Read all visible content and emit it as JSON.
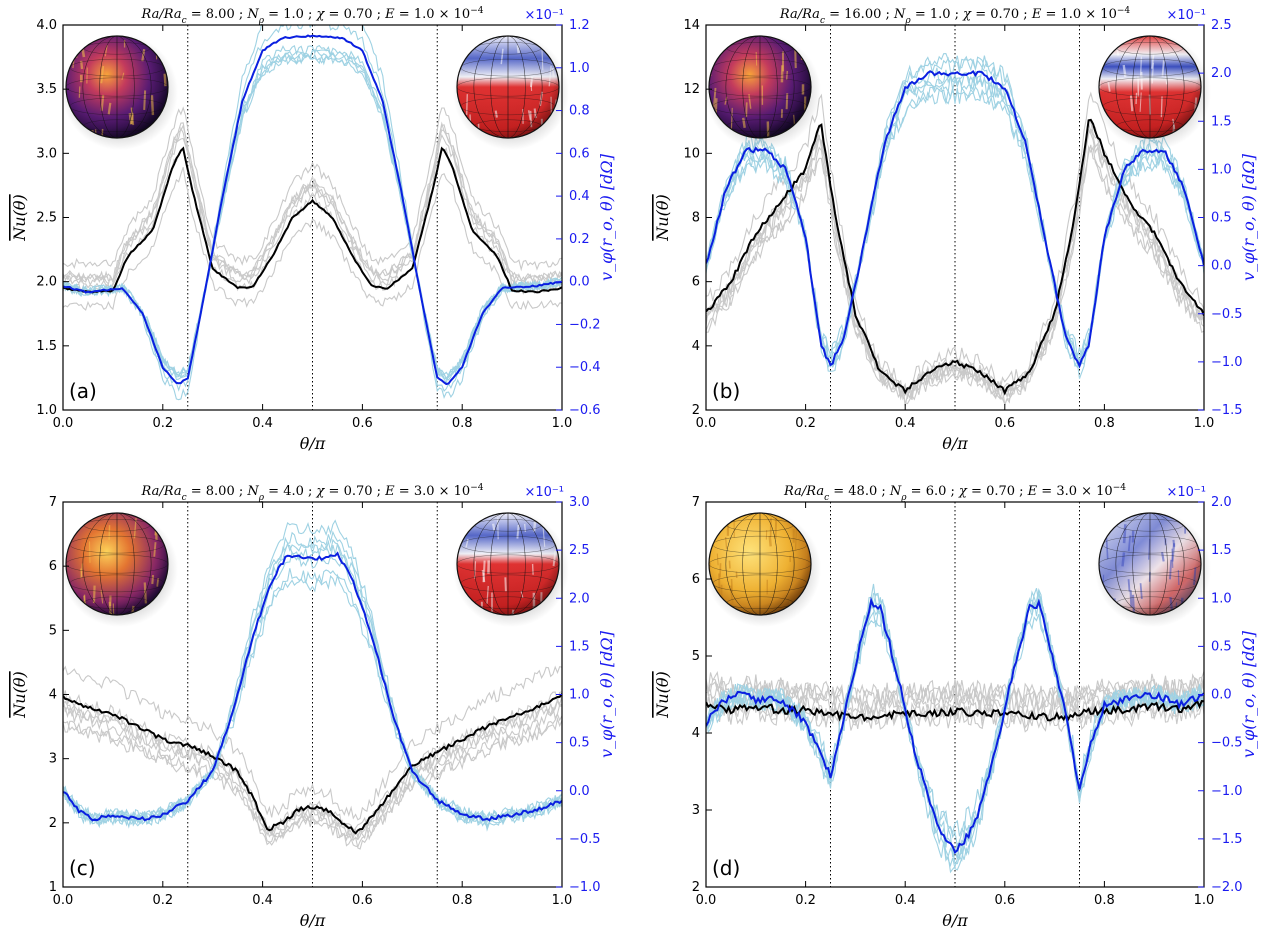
{
  "chart_data": [
    {
      "type": "line",
      "panel_label": "(a)",
      "title": "Ra/Ra_c = 8.00 ; N_ϱ = 1.0 ; χ = 0.70 ; E = 1.0 × 10^-4",
      "title_parts": {
        "ra": "8.00",
        "nrho": "1.0",
        "chi": "0.70",
        "ek": "1.0"
      },
      "xlabel": "θ/π",
      "ylabel_left": "Nu(θ)",
      "ylabel_right": "v_φ(r_o, θ)   [dΩ]",
      "right_multiplier": "×10⁻¹",
      "xlim": [
        0,
        1
      ],
      "ylim_left": [
        1.0,
        4.0
      ],
      "ylim_right": [
        -0.6,
        1.2
      ],
      "x_ticks": [
        0.0,
        0.2,
        0.4,
        0.6,
        0.8,
        1.0
      ],
      "y_ticks_left": [
        1.0,
        1.5,
        2.0,
        2.5,
        3.0,
        3.5,
        4.0
      ],
      "y_ticks_right": [
        -0.6,
        -0.4,
        -0.2,
        0.0,
        0.2,
        0.4,
        0.6,
        0.8,
        1.0,
        1.2
      ],
      "vlines_x": [
        0.25,
        0.5,
        0.75
      ],
      "series": [
        {
          "axis": "left",
          "color": "#000000",
          "points": [
            [
              0.0,
              1.95
            ],
            [
              0.05,
              1.92
            ],
            [
              0.1,
              1.93
            ],
            [
              0.13,
              2.2
            ],
            [
              0.18,
              2.4
            ],
            [
              0.22,
              2.9
            ],
            [
              0.24,
              3.05
            ],
            [
              0.26,
              2.7
            ],
            [
              0.3,
              2.1
            ],
            [
              0.35,
              1.95
            ],
            [
              0.38,
              1.96
            ],
            [
              0.42,
              2.2
            ],
            [
              0.46,
              2.5
            ],
            [
              0.5,
              2.63
            ],
            [
              0.54,
              2.5
            ],
            [
              0.58,
              2.2
            ],
            [
              0.62,
              1.96
            ],
            [
              0.65,
              1.95
            ],
            [
              0.7,
              2.1
            ],
            [
              0.74,
              2.7
            ],
            [
              0.76,
              3.05
            ],
            [
              0.78,
              2.9
            ],
            [
              0.82,
              2.4
            ],
            [
              0.87,
              2.2
            ],
            [
              0.9,
              1.93
            ],
            [
              0.95,
              1.92
            ],
            [
              1.0,
              1.95
            ]
          ]
        },
        {
          "axis": "right",
          "color": "#0a1fe0",
          "points": [
            [
              0.0,
              -0.02
            ],
            [
              0.05,
              -0.05
            ],
            [
              0.12,
              -0.03
            ],
            [
              0.16,
              -0.15
            ],
            [
              0.2,
              -0.4
            ],
            [
              0.23,
              -0.48
            ],
            [
              0.25,
              -0.45
            ],
            [
              0.28,
              -0.1
            ],
            [
              0.32,
              0.4
            ],
            [
              0.36,
              0.85
            ],
            [
              0.4,
              1.08
            ],
            [
              0.44,
              1.14
            ],
            [
              0.5,
              1.15
            ],
            [
              0.56,
              1.14
            ],
            [
              0.6,
              1.08
            ],
            [
              0.64,
              0.85
            ],
            [
              0.68,
              0.4
            ],
            [
              0.72,
              -0.1
            ],
            [
              0.75,
              -0.45
            ],
            [
              0.77,
              -0.48
            ],
            [
              0.8,
              -0.4
            ],
            [
              0.84,
              -0.15
            ],
            [
              0.88,
              -0.03
            ],
            [
              0.95,
              -0.02
            ],
            [
              1.0,
              0.0
            ]
          ]
        }
      ]
    },
    {
      "type": "line",
      "panel_label": "(b)",
      "title": "Ra/Ra_c = 16.00 ; N_ϱ = 1.0 ; χ = 0.70 ; E = 1.0 × 10^-4",
      "title_parts": {
        "ra": "16.00",
        "nrho": "1.0",
        "chi": "0.70",
        "ek": "1.0"
      },
      "xlabel": "θ/π",
      "ylabel_left": "Nu(θ)",
      "ylabel_right": "v_φ(r_o, θ)   [dΩ]",
      "right_multiplier": "×10⁻¹",
      "xlim": [
        0,
        1
      ],
      "ylim_left": [
        2,
        14
      ],
      "ylim_right": [
        -1.5,
        2.5
      ],
      "x_ticks": [
        0.0,
        0.2,
        0.4,
        0.6,
        0.8,
        1.0
      ],
      "y_ticks_left": [
        2,
        4,
        6,
        8,
        10,
        12,
        14
      ],
      "y_ticks_right": [
        -1.5,
        -1.0,
        -0.5,
        0.0,
        0.5,
        1.0,
        1.5,
        2.0,
        2.5
      ],
      "vlines_x": [
        0.25,
        0.5,
        0.75
      ],
      "series": [
        {
          "axis": "left",
          "color": "#000000",
          "points": [
            [
              0.0,
              5.0
            ],
            [
              0.05,
              6.0
            ],
            [
              0.1,
              7.5
            ],
            [
              0.15,
              8.5
            ],
            [
              0.2,
              9.5
            ],
            [
              0.23,
              11.0
            ],
            [
              0.26,
              8.0
            ],
            [
              0.3,
              5.0
            ],
            [
              0.35,
              3.2
            ],
            [
              0.4,
              2.6
            ],
            [
              0.45,
              3.2
            ],
            [
              0.5,
              3.5
            ],
            [
              0.55,
              3.2
            ],
            [
              0.6,
              2.6
            ],
            [
              0.65,
              3.2
            ],
            [
              0.7,
              5.0
            ],
            [
              0.74,
              8.0
            ],
            [
              0.77,
              11.2
            ],
            [
              0.8,
              10.0
            ],
            [
              0.85,
              8.5
            ],
            [
              0.9,
              7.5
            ],
            [
              0.95,
              6.0
            ],
            [
              1.0,
              5.0
            ]
          ]
        },
        {
          "axis": "right",
          "color": "#0a1fe0",
          "points": [
            [
              0.0,
              0.0
            ],
            [
              0.04,
              0.8
            ],
            [
              0.08,
              1.2
            ],
            [
              0.12,
              1.2
            ],
            [
              0.16,
              1.0
            ],
            [
              0.2,
              0.3
            ],
            [
              0.23,
              -0.8
            ],
            [
              0.25,
              -1.05
            ],
            [
              0.28,
              -0.7
            ],
            [
              0.32,
              0.3
            ],
            [
              0.36,
              1.3
            ],
            [
              0.4,
              1.85
            ],
            [
              0.45,
              2.0
            ],
            [
              0.5,
              2.0
            ],
            [
              0.55,
              2.0
            ],
            [
              0.6,
              1.85
            ],
            [
              0.64,
              1.3
            ],
            [
              0.68,
              0.3
            ],
            [
              0.72,
              -0.7
            ],
            [
              0.75,
              -1.05
            ],
            [
              0.77,
              -0.8
            ],
            [
              0.8,
              0.3
            ],
            [
              0.84,
              1.0
            ],
            [
              0.88,
              1.2
            ],
            [
              0.92,
              1.2
            ],
            [
              0.96,
              0.8
            ],
            [
              1.0,
              0.0
            ]
          ]
        }
      ]
    },
    {
      "type": "line",
      "panel_label": "(c)",
      "title": "Ra/Ra_c = 8.00 ; N_ϱ = 4.0 ; χ = 0.70 ; E = 3.0 × 10^-4",
      "title_parts": {
        "ra": "8.00",
        "nrho": "4.0",
        "chi": "0.70",
        "ek": "3.0"
      },
      "xlabel": "θ/π",
      "ylabel_left": "Nu(θ)",
      "ylabel_right": "v_φ(r_o, θ)   [dΩ]",
      "right_multiplier": "×10⁻¹",
      "xlim": [
        0,
        1
      ],
      "ylim_left": [
        1,
        7
      ],
      "ylim_right": [
        -1.0,
        3.0
      ],
      "x_ticks": [
        0.0,
        0.2,
        0.4,
        0.6,
        0.8,
        1.0
      ],
      "y_ticks_left": [
        1,
        2,
        3,
        4,
        5,
        6,
        7
      ],
      "y_ticks_right": [
        -1.0,
        -0.5,
        0.0,
        0.5,
        1.0,
        1.5,
        2.0,
        2.5,
        3.0
      ],
      "vlines_x": [
        0.25,
        0.5,
        0.75
      ],
      "series": [
        {
          "axis": "left",
          "color": "#000000",
          "points": [
            [
              0.0,
              3.95
            ],
            [
              0.05,
              3.8
            ],
            [
              0.1,
              3.7
            ],
            [
              0.15,
              3.5
            ],
            [
              0.2,
              3.3
            ],
            [
              0.25,
              3.2
            ],
            [
              0.3,
              3.05
            ],
            [
              0.35,
              2.8
            ],
            [
              0.38,
              2.4
            ],
            [
              0.41,
              1.9
            ],
            [
              0.44,
              2.0
            ],
            [
              0.47,
              2.2
            ],
            [
              0.5,
              2.25
            ],
            [
              0.53,
              2.2
            ],
            [
              0.56,
              2.0
            ],
            [
              0.59,
              1.85
            ],
            [
              0.62,
              2.1
            ],
            [
              0.66,
              2.5
            ],
            [
              0.7,
              2.9
            ],
            [
              0.75,
              3.1
            ],
            [
              0.8,
              3.3
            ],
            [
              0.85,
              3.5
            ],
            [
              0.9,
              3.65
            ],
            [
              0.95,
              3.8
            ],
            [
              1.0,
              4.0
            ]
          ]
        },
        {
          "axis": "right",
          "color": "#0a1fe0",
          "points": [
            [
              0.0,
              0.0
            ],
            [
              0.03,
              -0.2
            ],
            [
              0.06,
              -0.3
            ],
            [
              0.1,
              -0.25
            ],
            [
              0.15,
              -0.3
            ],
            [
              0.2,
              -0.25
            ],
            [
              0.25,
              -0.1
            ],
            [
              0.3,
              0.2
            ],
            [
              0.34,
              0.8
            ],
            [
              0.38,
              1.6
            ],
            [
              0.42,
              2.2
            ],
            [
              0.45,
              2.45
            ],
            [
              0.5,
              2.4
            ],
            [
              0.55,
              2.45
            ],
            [
              0.58,
              2.2
            ],
            [
              0.62,
              1.6
            ],
            [
              0.66,
              0.8
            ],
            [
              0.7,
              0.2
            ],
            [
              0.75,
              -0.1
            ],
            [
              0.8,
              -0.25
            ],
            [
              0.85,
              -0.3
            ],
            [
              0.9,
              -0.25
            ],
            [
              0.95,
              -0.2
            ],
            [
              1.0,
              -0.1
            ]
          ]
        }
      ]
    },
    {
      "type": "line",
      "panel_label": "(d)",
      "title": "Ra/Ra_c = 48.0 ; N_ϱ = 6.0 ; χ = 0.70 ; E = 3.0 × 10^-4",
      "title_parts": {
        "ra": "48.0",
        "nrho": "6.0",
        "chi": "0.70",
        "ek": "3.0"
      },
      "xlabel": "θ/π",
      "ylabel_left": "Nu(θ)",
      "ylabel_right": "v_φ(r_o, θ)   [dΩ]",
      "right_multiplier": "×10⁻¹",
      "xlim": [
        0,
        1
      ],
      "ylim_left": [
        2,
        7
      ],
      "ylim_right": [
        -2.0,
        2.0
      ],
      "x_ticks": [
        0.0,
        0.2,
        0.4,
        0.6,
        0.8,
        1.0
      ],
      "y_ticks_left": [
        2,
        3,
        4,
        5,
        6,
        7
      ],
      "y_ticks_right": [
        -2.0,
        -1.5,
        -1.0,
        -0.5,
        0.0,
        0.5,
        1.0,
        1.5,
        2.0
      ],
      "vlines_x": [
        0.25,
        0.5,
        0.75
      ],
      "series": [
        {
          "axis": "left",
          "color": "#000000",
          "points": [
            [
              0.0,
              4.4
            ],
            [
              0.05,
              4.3
            ],
            [
              0.1,
              4.35
            ],
            [
              0.15,
              4.3
            ],
            [
              0.2,
              4.3
            ],
            [
              0.25,
              4.25
            ],
            [
              0.3,
              4.2
            ],
            [
              0.35,
              4.22
            ],
            [
              0.4,
              4.25
            ],
            [
              0.45,
              4.25
            ],
            [
              0.5,
              4.28
            ],
            [
              0.55,
              4.25
            ],
            [
              0.6,
              4.25
            ],
            [
              0.65,
              4.22
            ],
            [
              0.7,
              4.2
            ],
            [
              0.75,
              4.25
            ],
            [
              0.8,
              4.3
            ],
            [
              0.85,
              4.3
            ],
            [
              0.9,
              4.35
            ],
            [
              0.95,
              4.3
            ],
            [
              1.0,
              4.4
            ]
          ]
        },
        {
          "axis": "right",
          "color": "#0a1fe0",
          "points": [
            [
              0.0,
              -0.3
            ],
            [
              0.03,
              -0.1
            ],
            [
              0.06,
              0.0
            ],
            [
              0.1,
              -0.05
            ],
            [
              0.15,
              -0.05
            ],
            [
              0.2,
              -0.3
            ],
            [
              0.23,
              -0.6
            ],
            [
              0.25,
              -0.85
            ],
            [
              0.27,
              -0.4
            ],
            [
              0.3,
              0.3
            ],
            [
              0.33,
              0.95
            ],
            [
              0.35,
              0.9
            ],
            [
              0.38,
              0.3
            ],
            [
              0.42,
              -0.6
            ],
            [
              0.46,
              -1.3
            ],
            [
              0.5,
              -1.65
            ],
            [
              0.54,
              -1.35
            ],
            [
              0.58,
              -0.6
            ],
            [
              0.62,
              0.3
            ],
            [
              0.65,
              0.9
            ],
            [
              0.67,
              0.95
            ],
            [
              0.7,
              0.3
            ],
            [
              0.73,
              -0.4
            ],
            [
              0.75,
              -1.0
            ],
            [
              0.77,
              -0.55
            ],
            [
              0.8,
              -0.1
            ],
            [
              0.85,
              -0.05
            ],
            [
              0.9,
              0.0
            ],
            [
              0.95,
              -0.1
            ],
            [
              1.0,
              0.0
            ]
          ]
        }
      ]
    }
  ]
}
